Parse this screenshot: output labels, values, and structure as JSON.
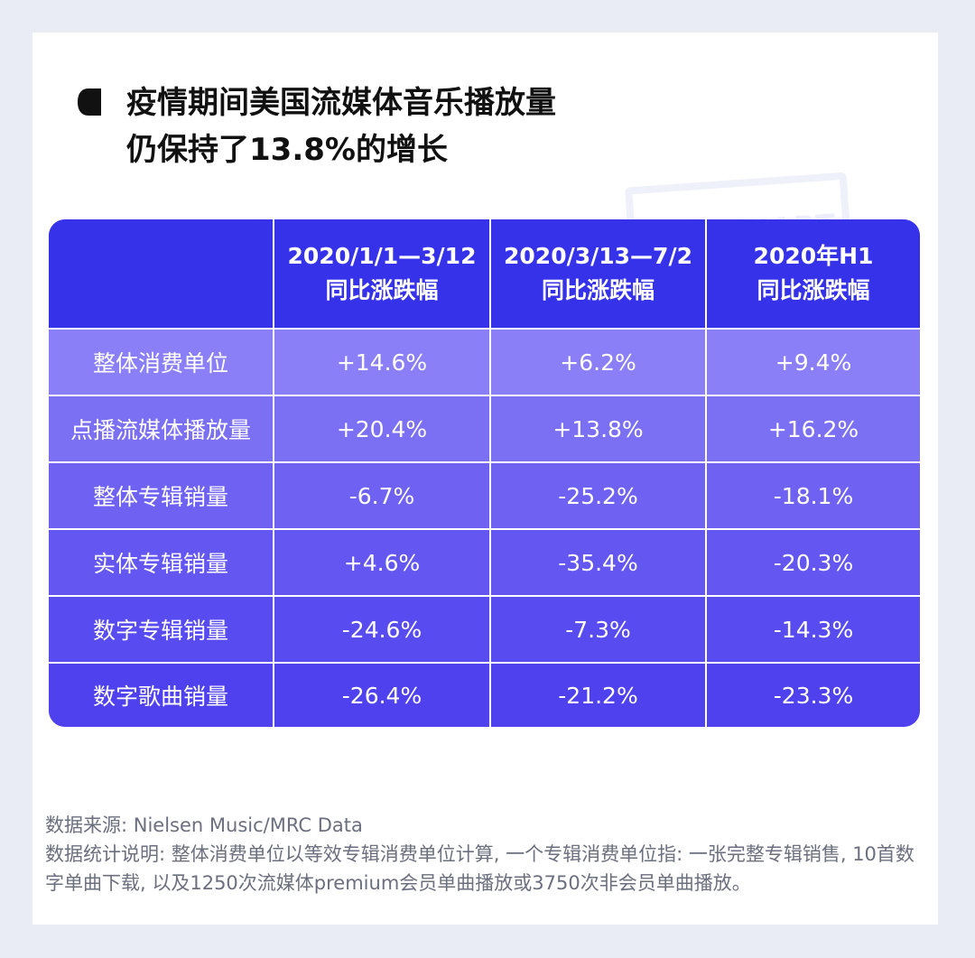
{
  "title": {
    "line1": "疫情期间美国流媒体音乐播放量",
    "line2": "仍保持了13.8%的增长"
  },
  "watermark": "UNI CHART",
  "colors": {
    "header": "#3632ea",
    "row_light": "#8a7ff7",
    "row_dark": "#4f42ee"
  },
  "chart_data": {
    "type": "table",
    "columns": [
      {
        "line1": "",
        "line2": ""
      },
      {
        "line1": "2020/1/1—3/12",
        "line2": "同比涨跌幅"
      },
      {
        "line1": "2020/3/13—7/2",
        "line2": "同比涨跌幅"
      },
      {
        "line1": "2020年H1",
        "line2": "同比涨跌幅"
      }
    ],
    "rows": [
      {
        "label": "整体消费单位",
        "values": [
          "+14.6%",
          "+6.2%",
          "+9.4%"
        ]
      },
      {
        "label": "点播流媒体播放量",
        "values": [
          "+20.4%",
          "+13.8%",
          "+16.2%"
        ]
      },
      {
        "label": "整体专辑销量",
        "values": [
          "-6.7%",
          "-25.2%",
          "-18.1%"
        ]
      },
      {
        "label": "实体专辑销量",
        "values": [
          "+4.6%",
          "-35.4%",
          "-20.3%"
        ]
      },
      {
        "label": "数字专辑销量",
        "values": [
          "-24.6%",
          "-7.3%",
          "-14.3%"
        ]
      },
      {
        "label": "数字歌曲销量",
        "values": [
          "-26.4%",
          "-21.2%",
          "-23.3%"
        ]
      }
    ]
  },
  "footer": {
    "source": "数据来源: Nielsen Music/MRC Data",
    "note": "数据统计说明: 整体消费单位以等效专辑消费单位计算, 一个专辑消费单位指: 一张完整专辑销售, 10首数字单曲下载, 以及1250次流媒体premium会员单曲播放或3750次非会员单曲播放。"
  }
}
